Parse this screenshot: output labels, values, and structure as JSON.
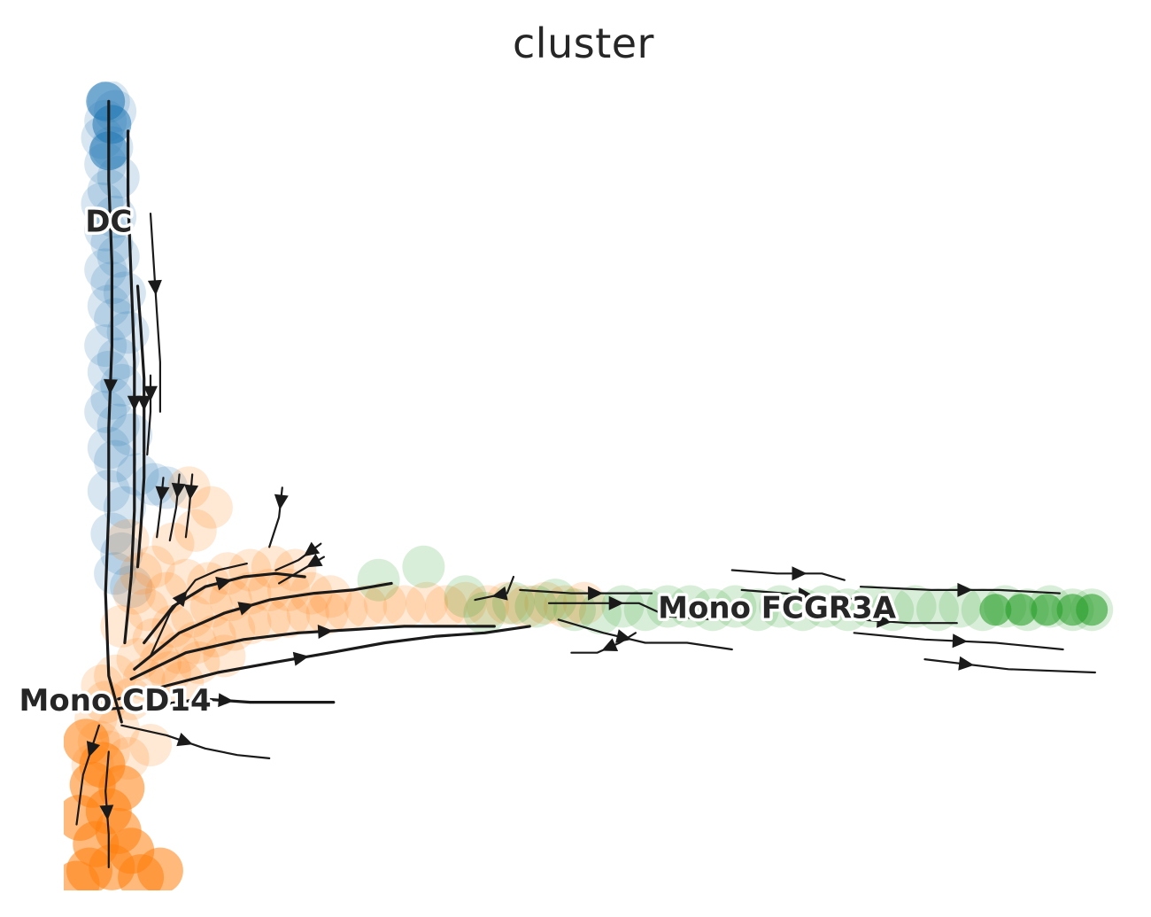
{
  "chart_data": {
    "type": "scatter",
    "subtype": "velocity-embedding-stream",
    "title": "cluster",
    "xlabel": "",
    "ylabel": "",
    "axes_visible": false,
    "grid": false,
    "legend": "on data",
    "series": [
      {
        "name": "DC",
        "color": "#1f77b4",
        "label_point": [
          0.6,
          14.2
        ],
        "points": [
          [
            0.6,
            17.9
          ],
          [
            0.5,
            17.3
          ],
          [
            0.8,
            17.6
          ],
          [
            0.4,
            16.8
          ],
          [
            0.7,
            16.5
          ],
          [
            0.5,
            16.0
          ],
          [
            0.9,
            15.6
          ],
          [
            0.6,
            15.2
          ],
          [
            0.4,
            14.8
          ],
          [
            0.8,
            14.4
          ],
          [
            0.5,
            14.0
          ],
          [
            0.7,
            13.6
          ],
          [
            0.9,
            13.2
          ],
          [
            0.5,
            12.8
          ],
          [
            0.7,
            12.4
          ],
          [
            1.1,
            12.1
          ],
          [
            0.6,
            11.7
          ],
          [
            0.8,
            11.3
          ],
          [
            1.2,
            10.9
          ],
          [
            0.5,
            10.5
          ],
          [
            0.9,
            10.1
          ],
          [
            0.6,
            9.7
          ],
          [
            1.0,
            9.3
          ],
          [
            0.7,
            8.9
          ],
          [
            0.5,
            8.5
          ],
          [
            0.9,
            8.1
          ],
          [
            1.3,
            7.8
          ],
          [
            0.6,
            7.4
          ],
          [
            0.8,
            7.0
          ],
          [
            1.5,
            6.6
          ],
          [
            2.0,
            6.3
          ],
          [
            2.4,
            6.2
          ],
          [
            0.6,
            6.1
          ],
          [
            1.1,
            5.6
          ],
          [
            0.7,
            4.8
          ],
          [
            1.0,
            4.2
          ],
          [
            0.8,
            3.6
          ],
          [
            1.3,
            3.2
          ]
        ]
      },
      {
        "name": "Mono CD14",
        "color": "#ff7f0e",
        "label_point": [
          0.8,
          -0.3
        ],
        "points": [
          [
            0.3,
            -1.5
          ],
          [
            0.1,
            -2.2
          ],
          [
            0.6,
            -1.8
          ],
          [
            0.2,
            -0.8
          ],
          [
            0.5,
            -0.3
          ],
          [
            0.9,
            -1.1
          ],
          [
            1.2,
            -2.0
          ],
          [
            0.4,
            0.2
          ],
          [
            0.8,
            0.5
          ],
          [
            1.3,
            -0.2
          ],
          [
            1.7,
            0.4
          ],
          [
            2.2,
            0.9
          ],
          [
            2.8,
            1.2
          ],
          [
            3.3,
            1.5
          ],
          [
            3.9,
            1.7
          ],
          [
            4.5,
            1.9
          ],
          [
            5.0,
            2.1
          ],
          [
            5.6,
            2.2
          ],
          [
            6.2,
            2.3
          ],
          [
            6.8,
            2.4
          ],
          [
            7.4,
            2.4
          ],
          [
            8.0,
            2.5
          ],
          [
            2.0,
            1.6
          ],
          [
            2.6,
            2.0
          ],
          [
            3.2,
            2.3
          ],
          [
            3.8,
            2.6
          ],
          [
            4.4,
            2.8
          ],
          [
            5.0,
            3.0
          ],
          [
            5.6,
            3.1
          ],
          [
            6.2,
            3.1
          ],
          [
            6.9,
            3.0
          ],
          [
            7.5,
            2.9
          ],
          [
            1.5,
            1.0
          ],
          [
            2.5,
            0.6
          ],
          [
            3.4,
            0.9
          ],
          [
            4.2,
            1.1
          ],
          [
            1.8,
            2.5
          ],
          [
            2.4,
            3.0
          ],
          [
            3.0,
            3.4
          ],
          [
            3.7,
            3.3
          ],
          [
            4.3,
            3.6
          ],
          [
            5.0,
            3.7
          ],
          [
            5.7,
            3.8
          ],
          [
            6.4,
            3.7
          ],
          [
            1.0,
            2.0
          ],
          [
            1.4,
            3.0
          ],
          [
            2.0,
            3.8
          ],
          [
            2.6,
            4.5
          ],
          [
            3.3,
            4.9
          ],
          [
            3.8,
            5.6
          ],
          [
            3.1,
            6.2
          ],
          [
            1.6,
            3.6
          ],
          [
            1.2,
            4.6
          ],
          [
            8.6,
            2.6
          ],
          [
            9.2,
            2.7
          ],
          [
            9.8,
            2.6
          ],
          [
            10.5,
            2.7
          ],
          [
            11.1,
            2.6
          ],
          [
            11.7,
            2.7
          ],
          [
            12.4,
            2.6
          ],
          [
            13.0,
            2.7
          ],
          [
            13.6,
            2.6
          ],
          [
            14.2,
            2.7
          ],
          [
            14.8,
            2.6
          ],
          [
            15.4,
            2.7
          ],
          [
            1.9,
            -1.6
          ],
          [
            2.9,
            0.3
          ]
        ]
      },
      {
        "name": "Mono FCGR3A",
        "color": "#2ca02c",
        "label_point": [
          21.4,
          2.5
        ],
        "points": [
          [
            9.0,
            3.4
          ],
          [
            10.4,
            3.8
          ],
          [
            11.7,
            2.9
          ],
          [
            12.3,
            2.4
          ],
          [
            13.2,
            2.7
          ],
          [
            13.9,
            2.6
          ],
          [
            14.5,
            2.8
          ],
          [
            15.1,
            2.5
          ],
          [
            15.9,
            2.4
          ],
          [
            16.6,
            2.6
          ],
          [
            17.3,
            2.5
          ],
          [
            18.0,
            2.6
          ],
          [
            18.7,
            2.6
          ],
          [
            19.4,
            2.5
          ],
          [
            20.1,
            2.6
          ],
          [
            20.8,
            2.5
          ],
          [
            21.5,
            2.6
          ],
          [
            22.2,
            2.5
          ],
          [
            22.9,
            2.6
          ],
          [
            23.6,
            2.5
          ],
          [
            24.3,
            2.6
          ],
          [
            25.0,
            2.5
          ],
          [
            25.7,
            2.6
          ],
          [
            26.4,
            2.5
          ],
          [
            27.1,
            2.6
          ],
          [
            27.8,
            2.5
          ],
          [
            28.5,
            2.6
          ],
          [
            29.2,
            2.5
          ],
          [
            29.9,
            2.6
          ],
          [
            30.6,
            2.5
          ],
          [
            31.2,
            2.5
          ]
        ]
      }
    ],
    "streamlines": [
      [
        [
          0.6,
          17.9
        ],
        [
          0.6,
          15.5
        ],
        [
          0.7,
          13.0
        ],
        [
          0.7,
          10.5
        ],
        [
          0.6,
          8.0
        ],
        [
          0.6,
          5.5
        ],
        [
          0.5,
          3.0
        ],
        [
          0.6,
          0.5
        ],
        [
          1.0,
          -0.9
        ]
      ],
      [
        [
          1.2,
          17.0
        ],
        [
          1.2,
          15.0
        ],
        [
          1.3,
          12.5
        ],
        [
          1.4,
          10.0
        ],
        [
          1.4,
          7.5
        ],
        [
          1.4,
          5.5
        ],
        [
          1.3,
          3.5
        ],
        [
          1.1,
          1.5
        ]
      ],
      [
        [
          1.5,
          12.3
        ],
        [
          1.6,
          11.0
        ],
        [
          1.7,
          9.5
        ],
        [
          1.7,
          8.0
        ],
        [
          1.7,
          6.5
        ],
        [
          1.6,
          5.0
        ],
        [
          1.5,
          3.8
        ]
      ],
      [
        [
          1.9,
          14.5
        ],
        [
          2.0,
          13.0
        ],
        [
          2.1,
          11.5
        ],
        [
          2.2,
          10.0
        ],
        [
          2.2,
          8.5
        ]
      ],
      [
        [
          1.9,
          9.6
        ],
        [
          1.9,
          8.5
        ],
        [
          1.8,
          7.2
        ]
      ],
      [
        [
          2.3,
          6.5
        ],
        [
          2.2,
          5.5
        ],
        [
          2.1,
          4.7
        ]
      ],
      [
        [
          2.8,
          6.6
        ],
        [
          2.7,
          5.6
        ],
        [
          2.5,
          4.6
        ]
      ],
      [
        [
          3.2,
          6.6
        ],
        [
          3.1,
          5.5
        ],
        [
          3.0,
          4.7
        ]
      ],
      [
        [
          6.0,
          6.2
        ],
        [
          5.9,
          5.3
        ],
        [
          5.6,
          4.4
        ]
      ],
      [
        [
          7.2,
          4.5
        ],
        [
          6.5,
          4.0
        ],
        [
          5.8,
          3.7
        ]
      ],
      [
        [
          7.3,
          4.1
        ],
        [
          6.6,
          3.7
        ],
        [
          5.9,
          3.3
        ]
      ],
      [
        [
          1.9,
          1.1
        ],
        [
          2.5,
          2.4
        ],
        [
          3.3,
          3.4
        ],
        [
          4.0,
          3.7
        ],
        [
          4.9,
          3.9
        ]
      ],
      [
        [
          1.7,
          1.5
        ],
        [
          2.6,
          2.6
        ],
        [
          3.6,
          3.2
        ],
        [
          4.8,
          3.5
        ],
        [
          5.8,
          3.6
        ],
        [
          6.7,
          3.5
        ]
      ],
      [
        [
          1.4,
          0.7
        ],
        [
          2.8,
          1.8
        ],
        [
          4.2,
          2.4
        ],
        [
          5.6,
          2.8
        ],
        [
          7.0,
          3.0
        ],
        [
          8.2,
          3.1
        ],
        [
          9.4,
          3.3
        ]
      ],
      [
        [
          1.3,
          0.4
        ],
        [
          3.0,
          1.2
        ],
        [
          4.8,
          1.6
        ],
        [
          6.5,
          1.8
        ],
        [
          8.2,
          1.9
        ],
        [
          9.8,
          2.0
        ],
        [
          11.2,
          2.0
        ],
        [
          12.6,
          2.0
        ]
      ],
      [
        [
          0.9,
          -0.2
        ],
        [
          2.4,
          0.2
        ],
        [
          4.0,
          0.6
        ],
        [
          5.7,
          0.9
        ],
        [
          7.5,
          1.2
        ],
        [
          9.2,
          1.5
        ],
        [
          10.8,
          1.7
        ],
        [
          12.3,
          1.8
        ],
        [
          13.7,
          2.0
        ]
      ],
      [
        [
          0.7,
          -0.5
        ],
        [
          2.0,
          -0.4
        ],
        [
          3.5,
          -0.2
        ],
        [
          5.0,
          -0.3
        ],
        [
          6.5,
          -0.3
        ],
        [
          7.6,
          -0.3
        ]
      ],
      [
        [
          1.0,
          -1.0
        ],
        [
          2.4,
          -1.3
        ],
        [
          3.6,
          -1.7
        ],
        [
          4.6,
          -1.9
        ],
        [
          5.6,
          -2.0
        ]
      ],
      [
        [
          0.6,
          -1.8
        ],
        [
          0.5,
          -3.0
        ],
        [
          0.6,
          -4.3
        ],
        [
          0.6,
          -5.3
        ]
      ],
      [
        [
          0.3,
          -1.0
        ],
        [
          -0.2,
          -2.5
        ],
        [
          -0.4,
          -4.0
        ]
      ],
      [
        [
          13.4,
          3.1
        ],
        [
          15.0,
          3.0
        ],
        [
          16.5,
          3.0
        ],
        [
          17.5,
          3.0
        ]
      ],
      [
        [
          14.3,
          2.7
        ],
        [
          15.7,
          2.7
        ],
        [
          17.1,
          2.7
        ],
        [
          18.0,
          2.3
        ],
        [
          19.5,
          2.2
        ]
      ],
      [
        [
          14.6,
          2.2
        ],
        [
          16.0,
          1.8
        ],
        [
          17.3,
          1.5
        ],
        [
          18.6,
          1.5
        ],
        [
          20.0,
          1.3
        ]
      ],
      [
        [
          20.0,
          3.7
        ],
        [
          21.4,
          3.6
        ],
        [
          22.8,
          3.6
        ],
        [
          23.5,
          3.4
        ]
      ],
      [
        [
          20.3,
          3.1
        ],
        [
          21.6,
          3.0
        ],
        [
          23.0,
          2.9
        ],
        [
          24.0,
          2.8
        ]
      ],
      [
        [
          24.0,
          3.2
        ],
        [
          26.2,
          3.1
        ],
        [
          28.3,
          3.1
        ],
        [
          30.2,
          3.0
        ]
      ],
      [
        [
          23.8,
          1.8
        ],
        [
          26.0,
          1.6
        ],
        [
          28.2,
          1.5
        ],
        [
          30.3,
          1.3
        ]
      ],
      [
        [
          24.0,
          2.2
        ],
        [
          25.5,
          2.1
        ],
        [
          27.0,
          2.1
        ]
      ],
      [
        [
          26.0,
          1.0
        ],
        [
          28.6,
          0.7
        ],
        [
          31.3,
          0.6
        ]
      ],
      [
        [
          17.0,
          1.8
        ],
        [
          16.5,
          1.5
        ],
        [
          15.8,
          1.2
        ],
        [
          15.0,
          1.2
        ]
      ],
      [
        [
          13.2,
          3.5
        ],
        [
          13.0,
          3.0
        ],
        [
          12.5,
          2.9
        ],
        [
          12.0,
          2.8
        ]
      ]
    ]
  }
}
